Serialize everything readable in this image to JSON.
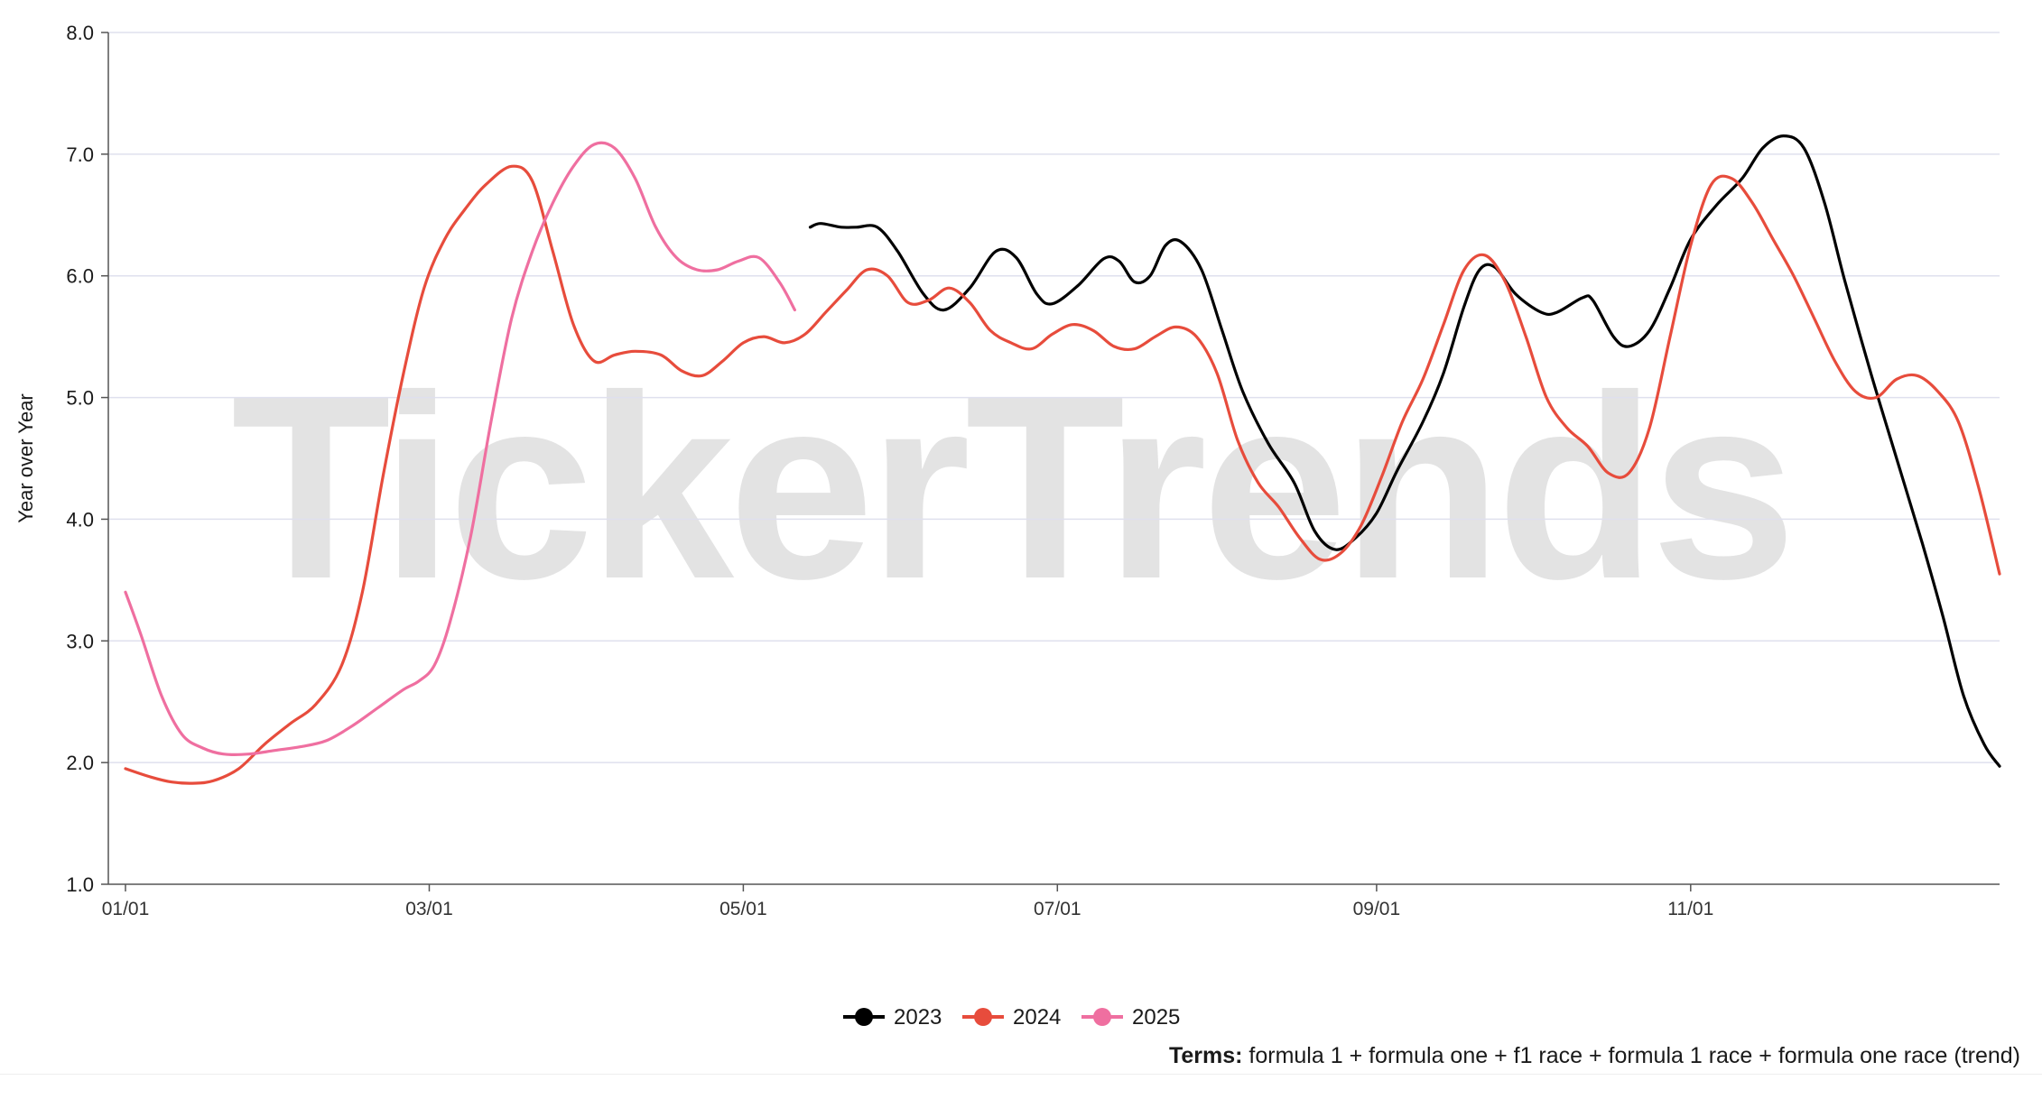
{
  "watermark": "TickerTrends",
  "terms": {
    "label": "Terms:",
    "text": "formula 1 + formula one + f1 race + formula 1 race + formula one race (trend)"
  },
  "chart_data": {
    "type": "line",
    "title": "",
    "xlabel": "",
    "ylabel": "Year over Year",
    "ylim": [
      1.0,
      8.0
    ],
    "yticks": [
      "1.0",
      "2.0",
      "3.0",
      "4.0",
      "5.0",
      "6.0",
      "7.0",
      "8.0"
    ],
    "xlim": [
      "01/01",
      "12/31"
    ],
    "xticks": [
      {
        "label": "01/01",
        "day": 1
      },
      {
        "label": "03/01",
        "day": 60
      },
      {
        "label": "05/01",
        "day": 121
      },
      {
        "label": "07/01",
        "day": 182
      },
      {
        "label": "09/01",
        "day": 244
      },
      {
        "label": "11/01",
        "day": 305
      }
    ],
    "x_unit": "day of year",
    "grid": true,
    "legend_position": "bottom-center",
    "series": [
      {
        "name": "2023",
        "color": "#000000",
        "points": [
          [
            134,
            6.4
          ],
          [
            136,
            6.43
          ],
          [
            140,
            6.4
          ],
          [
            143,
            6.4
          ],
          [
            147,
            6.4
          ],
          [
            151,
            6.2
          ],
          [
            156,
            5.85
          ],
          [
            160,
            5.72
          ],
          [
            165,
            5.9
          ],
          [
            170,
            6.2
          ],
          [
            174,
            6.15
          ],
          [
            178,
            5.85
          ],
          [
            181,
            5.77
          ],
          [
            186,
            5.92
          ],
          [
            191,
            6.14
          ],
          [
            194,
            6.12
          ],
          [
            197,
            5.95
          ],
          [
            200,
            6.0
          ],
          [
            203,
            6.25
          ],
          [
            206,
            6.28
          ],
          [
            210,
            6.05
          ],
          [
            214,
            5.55
          ],
          [
            218,
            5.05
          ],
          [
            223,
            4.62
          ],
          [
            228,
            4.3
          ],
          [
            232,
            3.9
          ],
          [
            236,
            3.75
          ],
          [
            240,
            3.85
          ],
          [
            244,
            4.05
          ],
          [
            248,
            4.4
          ],
          [
            253,
            4.8
          ],
          [
            257,
            5.2
          ],
          [
            261,
            5.75
          ],
          [
            264,
            6.05
          ],
          [
            267,
            6.07
          ],
          [
            271,
            5.85
          ],
          [
            276,
            5.7
          ],
          [
            279,
            5.7
          ],
          [
            284,
            5.82
          ],
          [
            286,
            5.8
          ],
          [
            290,
            5.5
          ],
          [
            293,
            5.42
          ],
          [
            297,
            5.55
          ],
          [
            301,
            5.9
          ],
          [
            305,
            6.3
          ],
          [
            310,
            6.58
          ],
          [
            315,
            6.8
          ],
          [
            319,
            7.05
          ],
          [
            323,
            7.15
          ],
          [
            327,
            7.05
          ],
          [
            331,
            6.6
          ],
          [
            335,
            5.95
          ],
          [
            340,
            5.2
          ],
          [
            345,
            4.5
          ],
          [
            350,
            3.8
          ],
          [
            354,
            3.2
          ],
          [
            358,
            2.55
          ],
          [
            362,
            2.15
          ],
          [
            365,
            1.97
          ]
        ]
      },
      {
        "name": "2024",
        "color": "#e74c3c",
        "points": [
          [
            1,
            1.95
          ],
          [
            6,
            1.88
          ],
          [
            10,
            1.84
          ],
          [
            14,
            1.83
          ],
          [
            18,
            1.85
          ],
          [
            23,
            1.95
          ],
          [
            28,
            2.15
          ],
          [
            33,
            2.32
          ],
          [
            38,
            2.48
          ],
          [
            43,
            2.8
          ],
          [
            47,
            3.4
          ],
          [
            51,
            4.35
          ],
          [
            55,
            5.2
          ],
          [
            59,
            5.9
          ],
          [
            63,
            6.3
          ],
          [
            67,
            6.55
          ],
          [
            71,
            6.75
          ],
          [
            76,
            6.9
          ],
          [
            80,
            6.78
          ],
          [
            84,
            6.2
          ],
          [
            88,
            5.6
          ],
          [
            92,
            5.3
          ],
          [
            96,
            5.35
          ],
          [
            100,
            5.38
          ],
          [
            105,
            5.35
          ],
          [
            109,
            5.22
          ],
          [
            113,
            5.18
          ],
          [
            117,
            5.3
          ],
          [
            121,
            5.45
          ],
          [
            125,
            5.5
          ],
          [
            129,
            5.45
          ],
          [
            133,
            5.52
          ],
          [
            137,
            5.7
          ],
          [
            141,
            5.88
          ],
          [
            145,
            6.05
          ],
          [
            149,
            6.0
          ],
          [
            153,
            5.78
          ],
          [
            157,
            5.8
          ],
          [
            161,
            5.9
          ],
          [
            165,
            5.78
          ],
          [
            169,
            5.55
          ],
          [
            173,
            5.45
          ],
          [
            177,
            5.4
          ],
          [
            181,
            5.52
          ],
          [
            185,
            5.6
          ],
          [
            189,
            5.55
          ],
          [
            193,
            5.42
          ],
          [
            197,
            5.4
          ],
          [
            201,
            5.5
          ],
          [
            205,
            5.58
          ],
          [
            209,
            5.5
          ],
          [
            213,
            5.2
          ],
          [
            217,
            4.65
          ],
          [
            221,
            4.3
          ],
          [
            225,
            4.1
          ],
          [
            229,
            3.85
          ],
          [
            233,
            3.67
          ],
          [
            237,
            3.72
          ],
          [
            241,
            3.95
          ],
          [
            245,
            4.35
          ],
          [
            249,
            4.8
          ],
          [
            253,
            5.15
          ],
          [
            257,
            5.6
          ],
          [
            261,
            6.05
          ],
          [
            265,
            6.17
          ],
          [
            269,
            5.95
          ],
          [
            273,
            5.5
          ],
          [
            277,
            5.0
          ],
          [
            281,
            4.75
          ],
          [
            285,
            4.6
          ],
          [
            289,
            4.38
          ],
          [
            293,
            4.38
          ],
          [
            297,
            4.75
          ],
          [
            301,
            5.5
          ],
          [
            305,
            6.25
          ],
          [
            309,
            6.75
          ],
          [
            313,
            6.8
          ],
          [
            317,
            6.6
          ],
          [
            321,
            6.3
          ],
          [
            325,
            6.0
          ],
          [
            329,
            5.65
          ],
          [
            333,
            5.3
          ],
          [
            337,
            5.05
          ],
          [
            341,
            5.0
          ],
          [
            345,
            5.15
          ],
          [
            349,
            5.18
          ],
          [
            353,
            5.05
          ],
          [
            357,
            4.8
          ],
          [
            361,
            4.25
          ],
          [
            365,
            3.55
          ]
        ]
      },
      {
        "name": "2025",
        "color": "#ef6fa0",
        "points": [
          [
            1,
            3.4
          ],
          [
            4,
            3.05
          ],
          [
            8,
            2.55
          ],
          [
            12,
            2.23
          ],
          [
            16,
            2.12
          ],
          [
            20,
            2.07
          ],
          [
            25,
            2.07
          ],
          [
            30,
            2.1
          ],
          [
            35,
            2.13
          ],
          [
            40,
            2.18
          ],
          [
            45,
            2.3
          ],
          [
            50,
            2.45
          ],
          [
            55,
            2.6
          ],
          [
            58,
            2.67
          ],
          [
            61,
            2.8
          ],
          [
            64,
            3.15
          ],
          [
            68,
            3.85
          ],
          [
            72,
            4.8
          ],
          [
            76,
            5.65
          ],
          [
            80,
            6.2
          ],
          [
            84,
            6.6
          ],
          [
            88,
            6.9
          ],
          [
            92,
            7.08
          ],
          [
            96,
            7.05
          ],
          [
            100,
            6.8
          ],
          [
            104,
            6.4
          ],
          [
            108,
            6.15
          ],
          [
            112,
            6.05
          ],
          [
            116,
            6.05
          ],
          [
            120,
            6.12
          ],
          [
            124,
            6.15
          ],
          [
            128,
            5.95
          ],
          [
            131,
            5.72
          ]
        ]
      }
    ]
  }
}
